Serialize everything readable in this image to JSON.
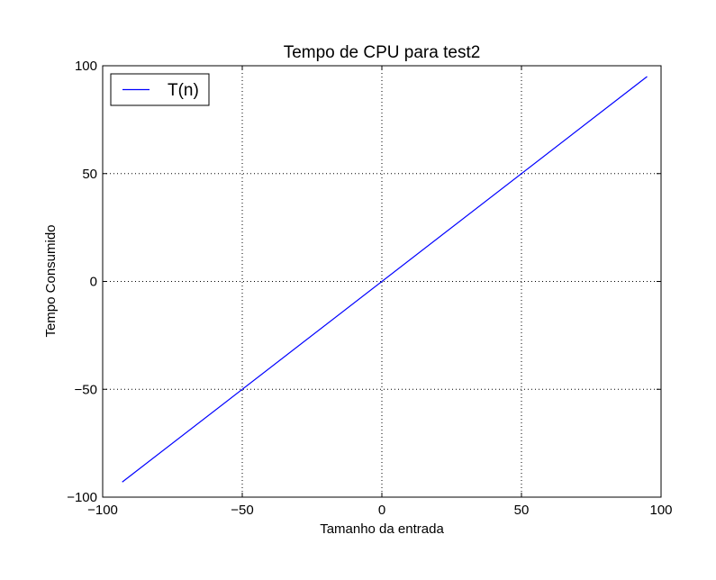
{
  "chart_data": {
    "type": "line",
    "title": "Tempo de CPU para test2",
    "xlabel": "Tamanho da entrada",
    "ylabel": "Tempo Consumido",
    "xlim": [
      -100,
      100
    ],
    "ylim": [
      -100,
      100
    ],
    "xticks": [
      -100,
      -50,
      0,
      50,
      100
    ],
    "yticks": [
      -100,
      -50,
      0,
      50,
      100
    ],
    "xtick_labels": [
      "−100",
      "−50",
      "0",
      "50",
      "100"
    ],
    "ytick_labels": [
      "−100",
      "−50",
      "0",
      "50",
      "100"
    ],
    "grid": true,
    "grid_style": "dotted",
    "legend_position": "top-left",
    "series": [
      {
        "name": "T(n)",
        "color": "#0000ff",
        "x": [
          -93,
          95
        ],
        "y": [
          -93,
          95
        ]
      }
    ]
  }
}
